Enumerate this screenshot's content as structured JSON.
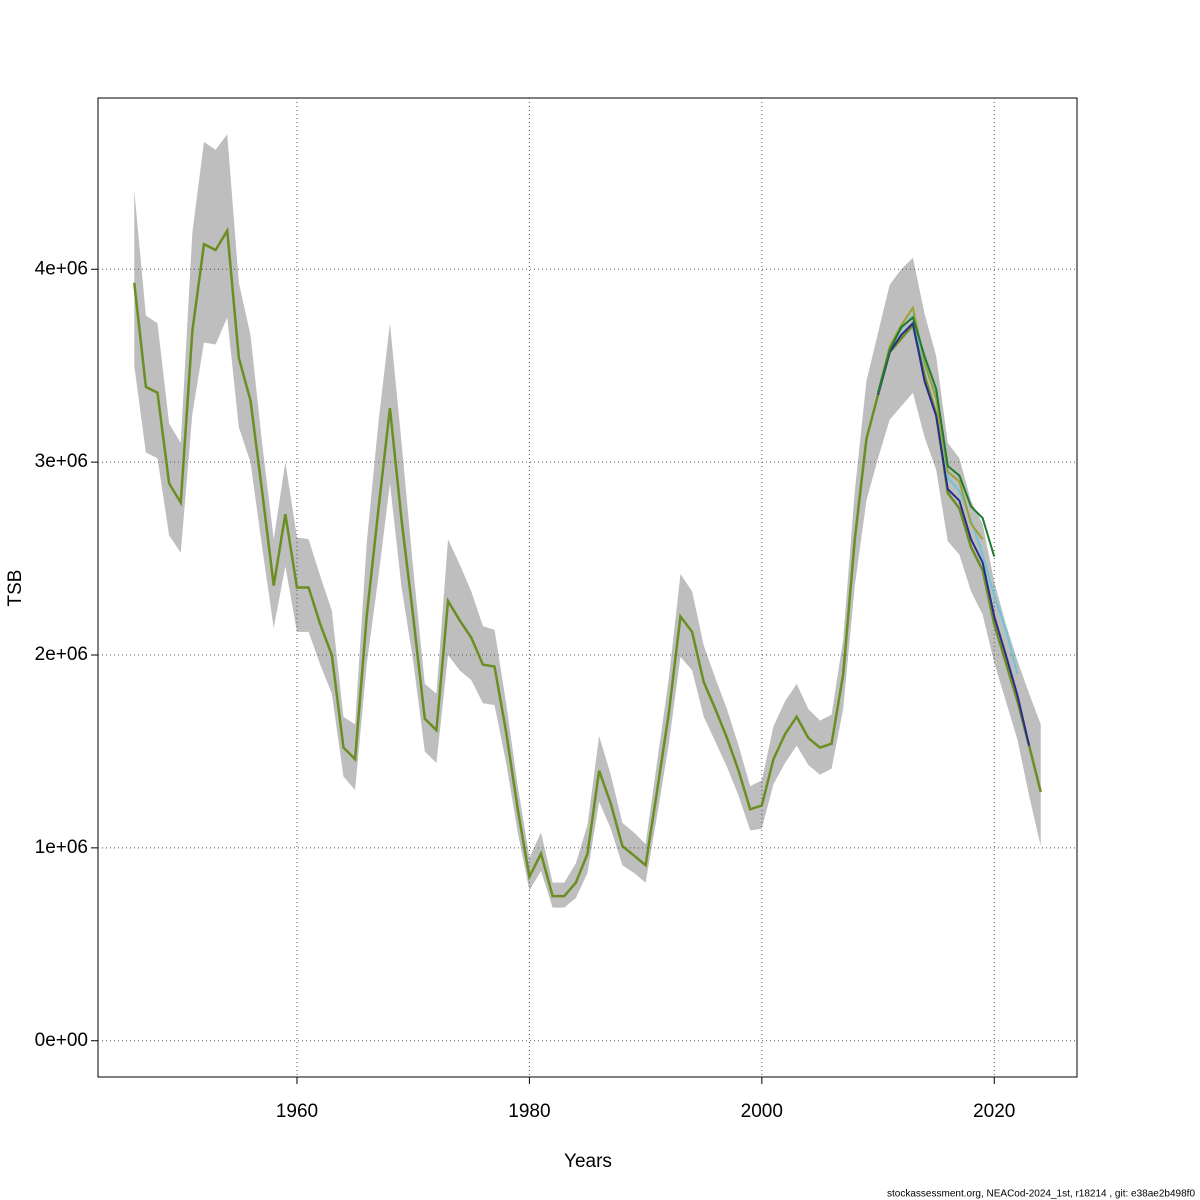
{
  "chart_data": {
    "type": "line",
    "x_label": "Years",
    "y_label": "TSB",
    "caption": "stockassessment.org, NEACod-2024_1st, r18214 , git: e38ae2b498f0",
    "grid": true,
    "xlim": [
      1942.88,
      2027.12
    ],
    "ylim": [
      -188000,
      4888000
    ],
    "xticks": [
      1960,
      1980,
      2000,
      2020
    ],
    "yticks": [
      {
        "value": 0,
        "label": "0e+00"
      },
      {
        "value": 1000000,
        "label": "1e+06"
      },
      {
        "value": 2000000,
        "label": "2e+06"
      },
      {
        "value": 3000000,
        "label": "3e+06"
      },
      {
        "value": 4000000,
        "label": "4e+06"
      }
    ],
    "x": [
      1946,
      1947,
      1948,
      1949,
      1950,
      1951,
      1952,
      1953,
      1954,
      1955,
      1956,
      1957,
      1958,
      1959,
      1960,
      1961,
      1962,
      1963,
      1964,
      1965,
      1966,
      1967,
      1968,
      1969,
      1970,
      1971,
      1972,
      1973,
      1974,
      1975,
      1976,
      1977,
      1978,
      1979,
      1980,
      1981,
      1982,
      1983,
      1984,
      1985,
      1986,
      1987,
      1988,
      1989,
      1990,
      1991,
      1992,
      1993,
      1994,
      1995,
      1996,
      1997,
      1998,
      1999,
      2000,
      2001,
      2002,
      2003,
      2004,
      2005,
      2006,
      2007,
      2008,
      2009,
      2010,
      2011,
      2012,
      2013,
      2014,
      2015,
      2016,
      2017,
      2018,
      2019,
      2020,
      2021,
      2022,
      2023,
      2024
    ],
    "band": {
      "color": "#bebebe",
      "upper": [
        4410000,
        3760000,
        3720000,
        3200000,
        3100000,
        4190000,
        4660000,
        4620000,
        4700000,
        3930000,
        3660000,
        3100000,
        2600000,
        3000000,
        2610000,
        2600000,
        2410000,
        2230000,
        1680000,
        1640000,
        2580000,
        3200000,
        3720000,
        3100000,
        2450000,
        1850000,
        1800000,
        2600000,
        2470000,
        2330000,
        2150000,
        2130000,
        1750000,
        1320000,
        950000,
        1080000,
        820000,
        820000,
        920000,
        1120000,
        1580000,
        1380000,
        1130000,
        1080000,
        1020000,
        1450000,
        1880000,
        2420000,
        2330000,
        2050000,
        1880000,
        1720000,
        1530000,
        1320000,
        1350000,
        1630000,
        1760000,
        1850000,
        1720000,
        1660000,
        1690000,
        2080000,
        2850000,
        3420000,
        3670000,
        3920000,
        4000000,
        4060000,
        3770000,
        3550000,
        3100000,
        3020000,
        2800000,
        2680000,
        2380000,
        2160000,
        1970000,
        1800000,
        1640000
      ],
      "lower": [
        3500000,
        3050000,
        3020000,
        2620000,
        2530000,
        3250000,
        3620000,
        3610000,
        3750000,
        3180000,
        3000000,
        2560000,
        2140000,
        2460000,
        2120000,
        2120000,
        1950000,
        1800000,
        1370000,
        1300000,
        1950000,
        2400000,
        2890000,
        2350000,
        1970000,
        1500000,
        1440000,
        2000000,
        1920000,
        1870000,
        1750000,
        1740000,
        1440000,
        1080000,
        780000,
        880000,
        690000,
        690000,
        740000,
        870000,
        1240000,
        1100000,
        910000,
        870000,
        820000,
        1170000,
        1540000,
        1990000,
        1920000,
        1680000,
        1550000,
        1420000,
        1270000,
        1090000,
        1100000,
        1330000,
        1440000,
        1530000,
        1430000,
        1380000,
        1410000,
        1720000,
        2360000,
        2800000,
        3020000,
        3220000,
        3290000,
        3360000,
        3130000,
        2960000,
        2590000,
        2520000,
        2330000,
        2210000,
        1960000,
        1760000,
        1560000,
        1270000,
        1010000
      ]
    },
    "series": [
      {
        "color": "#6b8e23",
        "values": [
          3930000,
          3390000,
          3360000,
          2890000,
          2790000,
          3680000,
          4130000,
          4100000,
          4200000,
          3540000,
          3320000,
          2850000,
          2360000,
          2730000,
          2350000,
          2350000,
          2160000,
          2000000,
          1520000,
          1460000,
          2200000,
          2750000,
          3280000,
          2700000,
          2200000,
          1670000,
          1610000,
          2280000,
          2180000,
          2090000,
          1950000,
          1940000,
          1600000,
          1200000,
          850000,
          970000,
          750000,
          750000,
          820000,
          970000,
          1400000,
          1230000,
          1010000,
          960000,
          910000,
          1300000,
          1700000,
          2200000,
          2120000,
          1860000,
          1720000,
          1570000,
          1400000,
          1200000,
          1220000,
          1460000,
          1590000,
          1680000,
          1570000,
          1520000,
          1540000,
          1900000,
          2600000,
          3120000,
          3350000,
          3570000,
          3640000,
          3710000,
          3450000,
          3250000,
          2840000,
          2760000,
          2560000,
          2440000,
          2160000,
          1960000,
          1760000,
          1530000,
          1290000
        ]
      },
      {
        "color": "#2b2b8c",
        "x": [
          2010,
          2011,
          2012,
          2013,
          2014,
          2015,
          2016,
          2017,
          2018,
          2019,
          2020,
          2021,
          2022,
          2023
        ],
        "values": [
          3350000,
          3570000,
          3660000,
          3720000,
          3420000,
          3240000,
          2860000,
          2800000,
          2600000,
          2480000,
          2200000,
          2000000,
          1790000,
          1530000
        ]
      },
      {
        "color": "#6cc5d8",
        "x": [
          2010,
          2011,
          2012,
          2013,
          2014,
          2015,
          2016,
          2017,
          2018,
          2019,
          2020,
          2021,
          2022
        ],
        "values": [
          3360000,
          3590000,
          3690000,
          3760000,
          3500000,
          3350000,
          2920000,
          2850000,
          2700000,
          2520000,
          2310000,
          2130000,
          1900000
        ]
      },
      {
        "color": "#a0a030",
        "x": [
          2010,
          2011,
          2012,
          2013,
          2014,
          2015,
          2016,
          2017,
          2018,
          2019
        ],
        "values": [
          3360000,
          3600000,
          3710000,
          3800000,
          3520000,
          3330000,
          2950000,
          2900000,
          2680000,
          2600000
        ]
      },
      {
        "color": "#1e7b32",
        "x": [
          2010,
          2011,
          2012,
          2013,
          2014,
          2015,
          2016,
          2017,
          2018,
          2019,
          2020
        ],
        "values": [
          3360000,
          3580000,
          3700000,
          3750000,
          3550000,
          3380000,
          2980000,
          2930000,
          2770000,
          2710000,
          2510000
        ]
      }
    ]
  }
}
